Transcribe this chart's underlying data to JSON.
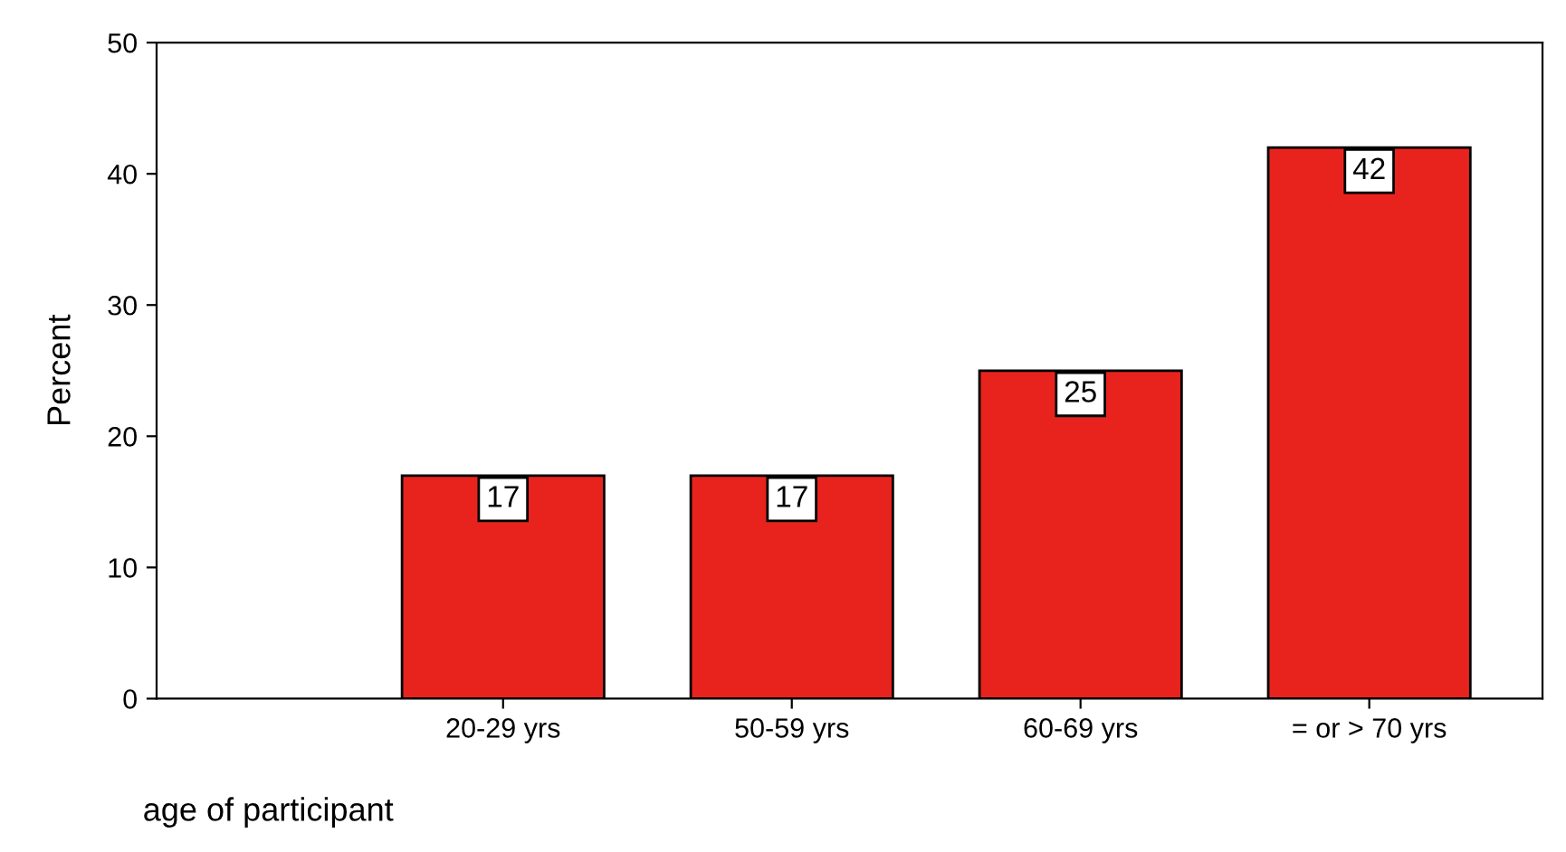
{
  "chart_data": {
    "type": "bar",
    "xlabel": "age of participant",
    "ylabel": "Percent",
    "categories": [
      "20-29 yrs",
      "50-59 yrs",
      "60-69 yrs",
      "= or > 70 yrs"
    ],
    "values": [
      17,
      17,
      25,
      42
    ],
    "color": "#e8231e",
    "ylim": [
      0,
      50
    ],
    "yticks": [
      0,
      10,
      20,
      30,
      40,
      50
    ],
    "grid": false,
    "data_labels": true
  }
}
